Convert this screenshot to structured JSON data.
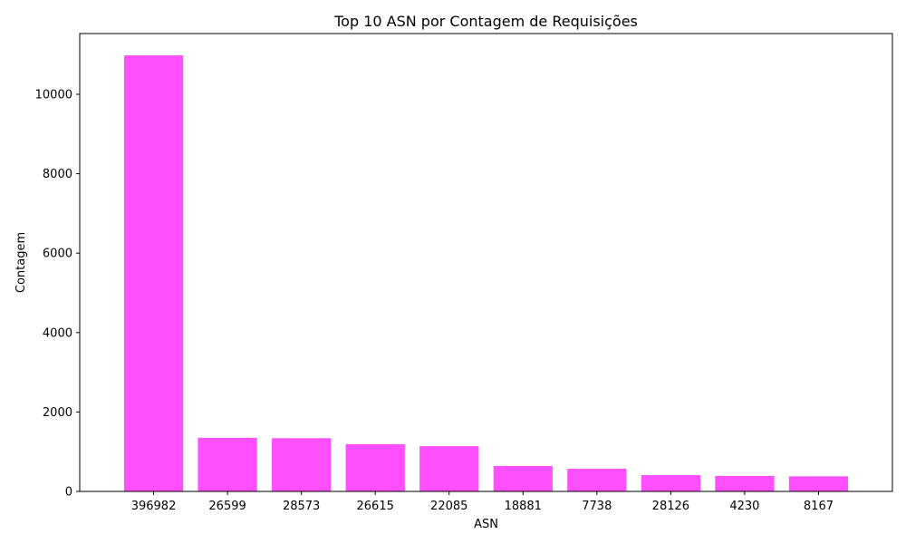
{
  "chart_data": {
    "type": "bar",
    "title": "Top 10 ASN por Contagem de Requisições",
    "xlabel": "ASN",
    "ylabel": "Contagem",
    "categories": [
      "396982",
      "26599",
      "28573",
      "26615",
      "22085",
      "18881",
      "7738",
      "28126",
      "4230",
      "8167"
    ],
    "values": [
      10980,
      1350,
      1340,
      1190,
      1140,
      640,
      570,
      410,
      390,
      380
    ],
    "ylim": [
      0,
      11530
    ],
    "yticks": [
      0,
      2000,
      4000,
      6000,
      8000,
      10000
    ],
    "bar_color": "#ff4fff",
    "grid": false,
    "legend": "none"
  }
}
